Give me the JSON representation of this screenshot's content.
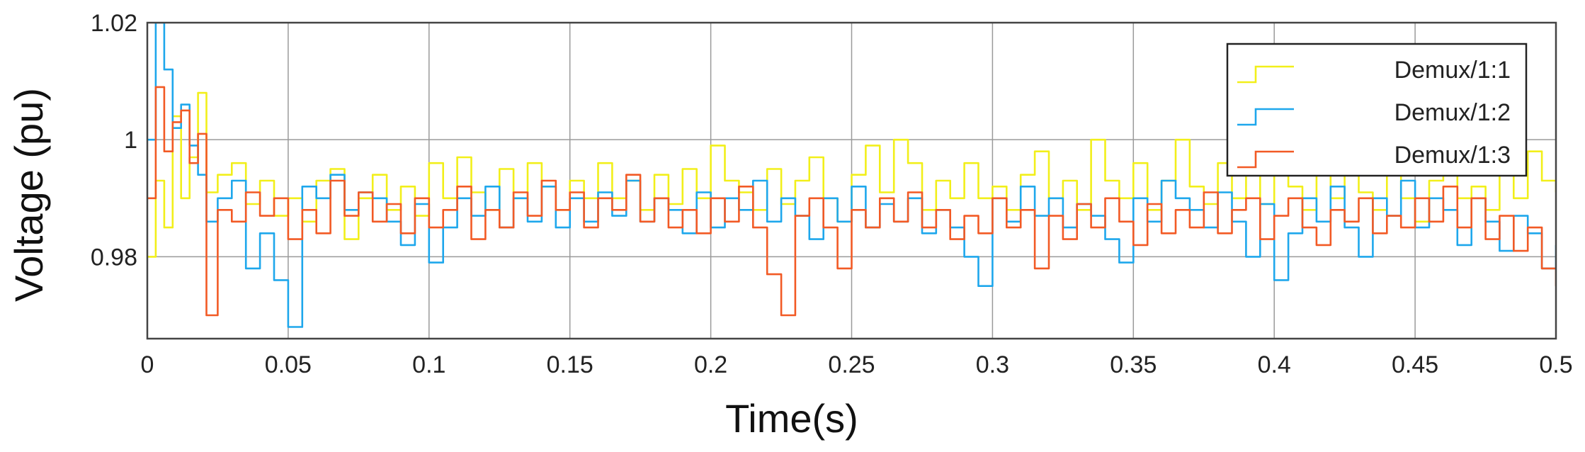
{
  "chart_data": {
    "type": "line",
    "title": "",
    "xlabel": "Time(s)",
    "ylabel": "Voltage (pu)",
    "xlim": [
      0,
      0.5
    ],
    "ylim": [
      0.966,
      1.02
    ],
    "xticks": [
      0,
      0.05,
      0.1,
      0.15,
      0.2,
      0.25,
      0.3,
      0.35,
      0.4,
      0.45,
      0.5
    ],
    "xtick_labels": [
      "0",
      "0.05",
      "0.1",
      "0.15",
      "0.2",
      "0.25",
      "0.3",
      "0.35",
      "0.4",
      "0.45",
      "0.5"
    ],
    "yticks": [
      0.98,
      1,
      1.02
    ],
    "ytick_labels": [
      "0.98",
      "1",
      "1.02"
    ],
    "grid": true,
    "legend_position": "top-right",
    "series": [
      {
        "name": "Demux/1:1",
        "color": "#f2ef1a",
        "x": [
          0,
          0.003,
          0.006,
          0.009,
          0.012,
          0.015,
          0.018,
          0.021,
          0.025,
          0.03,
          0.035,
          0.04,
          0.045,
          0.05,
          0.055,
          0.06,
          0.065,
          0.07,
          0.075,
          0.08,
          0.085,
          0.09,
          0.095,
          0.1,
          0.105,
          0.11,
          0.115,
          0.12,
          0.125,
          0.13,
          0.135,
          0.14,
          0.145,
          0.15,
          0.155,
          0.16,
          0.165,
          0.17,
          0.175,
          0.18,
          0.185,
          0.19,
          0.195,
          0.2,
          0.205,
          0.21,
          0.215,
          0.22,
          0.225,
          0.23,
          0.235,
          0.24,
          0.245,
          0.25,
          0.255,
          0.26,
          0.265,
          0.27,
          0.275,
          0.28,
          0.285,
          0.29,
          0.295,
          0.3,
          0.305,
          0.31,
          0.315,
          0.32,
          0.325,
          0.33,
          0.335,
          0.34,
          0.345,
          0.35,
          0.355,
          0.36,
          0.365,
          0.37,
          0.375,
          0.38,
          0.385,
          0.39,
          0.395,
          0.4,
          0.405,
          0.41,
          0.415,
          0.42,
          0.425,
          0.43,
          0.435,
          0.44,
          0.445,
          0.45,
          0.455,
          0.46,
          0.465,
          0.47,
          0.475,
          0.48,
          0.485,
          0.49,
          0.495,
          0.5
        ],
        "values": [
          0.98,
          0.993,
          0.985,
          1.004,
          0.99,
          0.997,
          1.008,
          0.991,
          0.994,
          0.996,
          0.989,
          0.993,
          0.987,
          0.99,
          0.986,
          0.993,
          0.995,
          0.983,
          0.99,
          0.994,
          0.988,
          0.992,
          0.987,
          0.996,
          0.99,
          0.997,
          0.991,
          0.988,
          0.995,
          0.99,
          0.996,
          0.992,
          0.988,
          0.993,
          0.99,
          0.996,
          0.99,
          0.993,
          0.988,
          0.994,
          0.989,
          0.995,
          0.99,
          0.999,
          0.993,
          0.991,
          0.988,
          0.995,
          0.989,
          0.993,
          0.997,
          0.99,
          0.986,
          0.994,
          0.999,
          0.991,
          1.0,
          0.996,
          0.988,
          0.993,
          0.99,
          0.996,
          0.99,
          0.992,
          0.988,
          0.994,
          0.998,
          0.99,
          0.993,
          0.988,
          1.0,
          0.993,
          0.99,
          0.996,
          0.988,
          0.993,
          1.0,
          0.992,
          0.989,
          0.996,
          0.99,
          0.994,
          0.989,
          0.996,
          0.992,
          0.988,
          0.994,
          0.99,
          0.997,
          0.991,
          0.988,
          0.994,
          0.99,
          0.986,
          0.993,
          0.997,
          0.99,
          0.992,
          0.988,
          0.995,
          0.99,
          0.998,
          0.993,
          0.991
        ]
      },
      {
        "name": "Demux/1:2",
        "color": "#1ea7ec",
        "x": [
          0,
          0.003,
          0.006,
          0.009,
          0.012,
          0.015,
          0.018,
          0.021,
          0.025,
          0.03,
          0.035,
          0.04,
          0.045,
          0.05,
          0.055,
          0.06,
          0.065,
          0.07,
          0.075,
          0.08,
          0.085,
          0.09,
          0.095,
          0.1,
          0.105,
          0.11,
          0.115,
          0.12,
          0.125,
          0.13,
          0.135,
          0.14,
          0.145,
          0.15,
          0.155,
          0.16,
          0.165,
          0.17,
          0.175,
          0.18,
          0.185,
          0.19,
          0.195,
          0.2,
          0.205,
          0.21,
          0.215,
          0.22,
          0.225,
          0.23,
          0.235,
          0.24,
          0.245,
          0.25,
          0.255,
          0.26,
          0.265,
          0.27,
          0.275,
          0.28,
          0.285,
          0.29,
          0.295,
          0.3,
          0.305,
          0.31,
          0.315,
          0.32,
          0.325,
          0.33,
          0.335,
          0.34,
          0.345,
          0.35,
          0.355,
          0.36,
          0.365,
          0.37,
          0.375,
          0.38,
          0.385,
          0.39,
          0.395,
          0.4,
          0.405,
          0.41,
          0.415,
          0.42,
          0.425,
          0.43,
          0.435,
          0.44,
          0.445,
          0.45,
          0.455,
          0.46,
          0.465,
          0.47,
          0.475,
          0.48,
          0.485,
          0.49,
          0.495,
          0.5
        ],
        "values": [
          1.0,
          1.02,
          1.012,
          1.002,
          1.006,
          0.999,
          0.994,
          0.986,
          0.99,
          0.993,
          0.978,
          0.984,
          0.976,
          0.968,
          0.992,
          0.99,
          0.994,
          0.988,
          0.991,
          0.99,
          0.986,
          0.982,
          0.989,
          0.979,
          0.985,
          0.99,
          0.987,
          0.992,
          0.985,
          0.99,
          0.986,
          0.992,
          0.985,
          0.99,
          0.986,
          0.991,
          0.987,
          0.993,
          0.986,
          0.99,
          0.988,
          0.984,
          0.991,
          0.985,
          0.99,
          0.988,
          0.993,
          0.986,
          0.99,
          0.987,
          0.983,
          0.99,
          0.986,
          0.992,
          0.985,
          0.989,
          0.986,
          0.99,
          0.984,
          0.988,
          0.985,
          0.98,
          0.975,
          0.99,
          0.986,
          0.992,
          0.987,
          0.99,
          0.985,
          0.989,
          0.987,
          0.983,
          0.979,
          0.99,
          0.986,
          0.993,
          0.99,
          0.988,
          0.985,
          0.991,
          0.986,
          0.98,
          0.989,
          0.976,
          0.984,
          0.99,
          0.986,
          0.992,
          0.985,
          0.98,
          0.99,
          0.987,
          0.993,
          0.985,
          0.99,
          0.988,
          0.982,
          0.99,
          0.986,
          0.981,
          0.987,
          0.984,
          0.978,
          0.982
        ]
      },
      {
        "name": "Demux/1:3",
        "color": "#f25a25",
        "x": [
          0,
          0.003,
          0.006,
          0.009,
          0.012,
          0.015,
          0.018,
          0.021,
          0.025,
          0.03,
          0.035,
          0.04,
          0.045,
          0.05,
          0.055,
          0.06,
          0.065,
          0.07,
          0.075,
          0.08,
          0.085,
          0.09,
          0.095,
          0.1,
          0.105,
          0.11,
          0.115,
          0.12,
          0.125,
          0.13,
          0.135,
          0.14,
          0.145,
          0.15,
          0.155,
          0.16,
          0.165,
          0.17,
          0.175,
          0.18,
          0.185,
          0.19,
          0.195,
          0.2,
          0.205,
          0.21,
          0.215,
          0.22,
          0.225,
          0.23,
          0.235,
          0.24,
          0.245,
          0.25,
          0.255,
          0.26,
          0.265,
          0.27,
          0.275,
          0.28,
          0.285,
          0.29,
          0.295,
          0.3,
          0.305,
          0.31,
          0.315,
          0.32,
          0.325,
          0.33,
          0.335,
          0.34,
          0.345,
          0.35,
          0.355,
          0.36,
          0.365,
          0.37,
          0.375,
          0.38,
          0.385,
          0.39,
          0.395,
          0.4,
          0.405,
          0.41,
          0.415,
          0.42,
          0.425,
          0.43,
          0.435,
          0.44,
          0.445,
          0.45,
          0.455,
          0.46,
          0.465,
          0.47,
          0.475,
          0.48,
          0.485,
          0.49,
          0.495,
          0.5
        ],
        "values": [
          0.99,
          1.009,
          0.998,
          1.003,
          1.005,
          0.996,
          1.001,
          0.97,
          0.988,
          0.986,
          0.991,
          0.987,
          0.99,
          0.983,
          0.988,
          0.984,
          0.993,
          0.987,
          0.991,
          0.986,
          0.989,
          0.984,
          0.99,
          0.985,
          0.988,
          0.992,
          0.983,
          0.988,
          0.985,
          0.991,
          0.987,
          0.993,
          0.988,
          0.991,
          0.985,
          0.99,
          0.988,
          0.994,
          0.986,
          0.99,
          0.985,
          0.988,
          0.984,
          0.99,
          0.986,
          0.992,
          0.985,
          0.977,
          0.97,
          0.987,
          0.99,
          0.985,
          0.978,
          0.988,
          0.985,
          0.99,
          0.986,
          0.991,
          0.985,
          0.988,
          0.983,
          0.987,
          0.984,
          0.99,
          0.985,
          0.988,
          0.978,
          0.987,
          0.983,
          0.989,
          0.985,
          0.99,
          0.986,
          0.982,
          0.989,
          0.984,
          0.988,
          0.985,
          0.991,
          0.984,
          0.988,
          0.99,
          0.983,
          0.987,
          0.99,
          0.985,
          0.982,
          0.988,
          0.986,
          0.99,
          0.984,
          0.987,
          0.985,
          0.99,
          0.986,
          0.992,
          0.985,
          0.99,
          0.983,
          0.987,
          0.981,
          0.985,
          0.978,
          0.975
        ]
      }
    ]
  }
}
